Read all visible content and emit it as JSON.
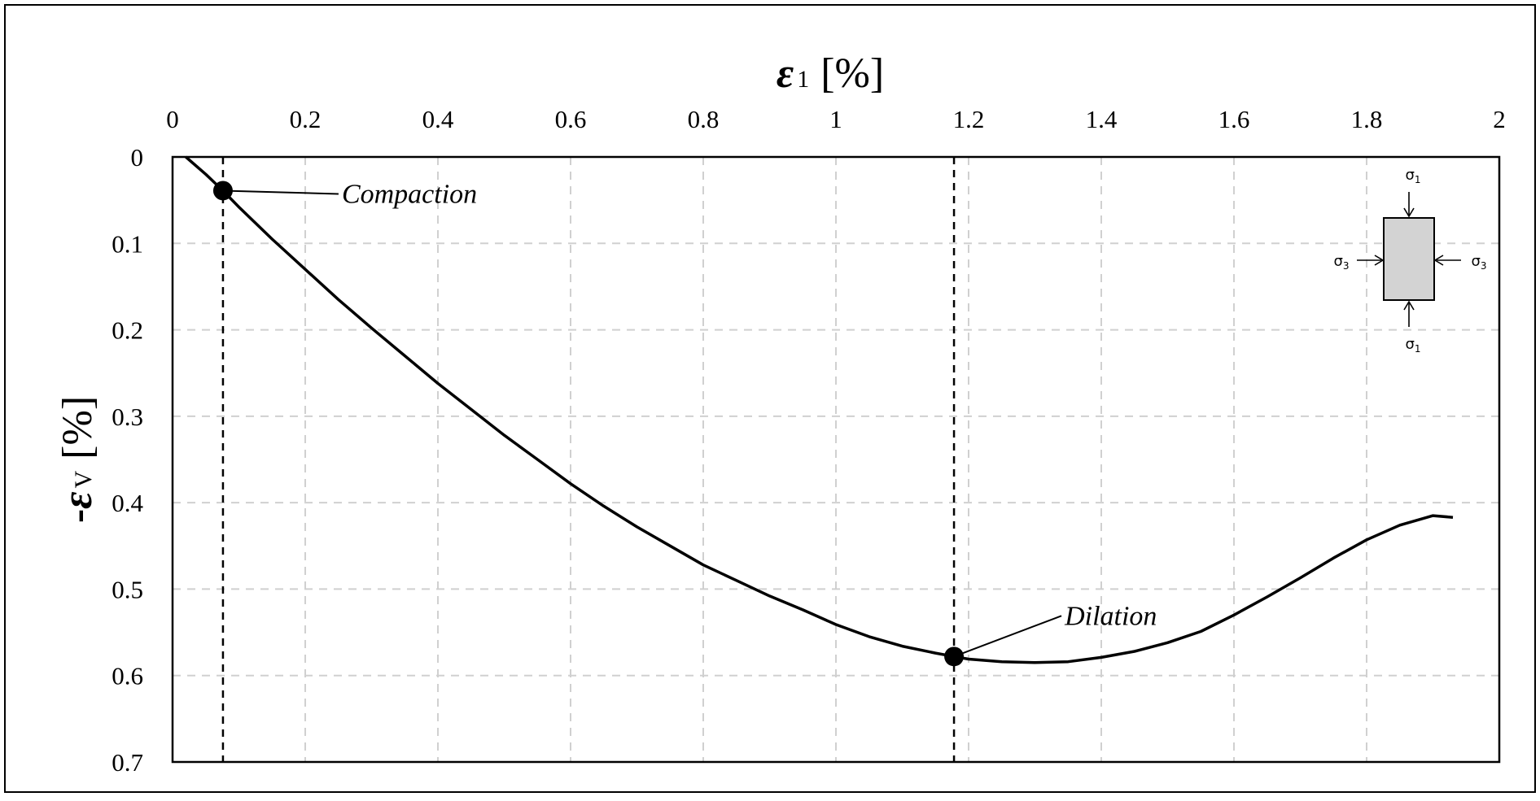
{
  "chart_data": {
    "type": "line",
    "x_axis": {
      "label_symbol": "ε",
      "label_subscript": "1",
      "label_unit": "[%]",
      "position": "top",
      "range": [
        0,
        2
      ],
      "ticks": [
        0,
        0.2,
        0.4,
        0.6,
        0.8,
        1,
        1.2,
        1.4,
        1.6,
        1.8,
        2
      ],
      "tick_labels": [
        "0",
        "0.2",
        "0.4",
        "0.6",
        "0.8",
        "1",
        "1.2",
        "1.4",
        "1.6",
        "1.8",
        "2"
      ]
    },
    "y_axis": {
      "label_prefix": "-",
      "label_symbol": "ε",
      "label_subscript": "V",
      "label_unit": "[%]",
      "range": [
        0,
        0.7
      ],
      "inverted": true,
      "ticks": [
        0,
        0.1,
        0.2,
        0.3,
        0.4,
        0.5,
        0.6,
        0.7
      ],
      "tick_labels": [
        "0",
        "0.1",
        "0.2",
        "0.3",
        "0.4",
        "0.5",
        "0.6",
        "0.7"
      ]
    },
    "grid": true,
    "grid_style": "dashed",
    "series": [
      {
        "color": "#000000",
        "points": [
          [
            0.02,
            0.0
          ],
          [
            0.05,
            0.02
          ],
          [
            0.076,
            0.039
          ],
          [
            0.1,
            0.058
          ],
          [
            0.15,
            0.095
          ],
          [
            0.2,
            0.13
          ],
          [
            0.25,
            0.165
          ],
          [
            0.3,
            0.198
          ],
          [
            0.35,
            0.23
          ],
          [
            0.4,
            0.262
          ],
          [
            0.45,
            0.292
          ],
          [
            0.5,
            0.322
          ],
          [
            0.55,
            0.35
          ],
          [
            0.6,
            0.378
          ],
          [
            0.65,
            0.404
          ],
          [
            0.7,
            0.428
          ],
          [
            0.75,
            0.45
          ],
          [
            0.8,
            0.472
          ],
          [
            0.85,
            0.49
          ],
          [
            0.9,
            0.508
          ],
          [
            0.95,
            0.524
          ],
          [
            1.0,
            0.541
          ],
          [
            1.05,
            0.555
          ],
          [
            1.1,
            0.566
          ],
          [
            1.15,
            0.574
          ],
          [
            1.178,
            0.578
          ],
          [
            1.2,
            0.581
          ],
          [
            1.25,
            0.584
          ],
          [
            1.3,
            0.585
          ],
          [
            1.35,
            0.584
          ],
          [
            1.4,
            0.579
          ],
          [
            1.45,
            0.572
          ],
          [
            1.5,
            0.562
          ],
          [
            1.55,
            0.549
          ],
          [
            1.6,
            0.53
          ],
          [
            1.65,
            0.509
          ],
          [
            1.7,
            0.487
          ],
          [
            1.75,
            0.464
          ],
          [
            1.8,
            0.443
          ],
          [
            1.85,
            0.426
          ],
          [
            1.9,
            0.415
          ],
          [
            1.93,
            0.417
          ]
        ]
      }
    ],
    "vertical_markers": [
      0.076,
      1.178
    ],
    "annotations": [
      {
        "text": "Compaction",
        "point": [
          0.076,
          0.039
        ]
      },
      {
        "text": "Dilation",
        "point": [
          1.178,
          0.578
        ]
      }
    ],
    "inset": {
      "description_labels": [
        "σ1",
        "σ1",
        "σ3",
        "σ3"
      ],
      "sigma": "σ",
      "sub1": "1",
      "sub3": "3",
      "fill": "#d3d3d3"
    }
  }
}
